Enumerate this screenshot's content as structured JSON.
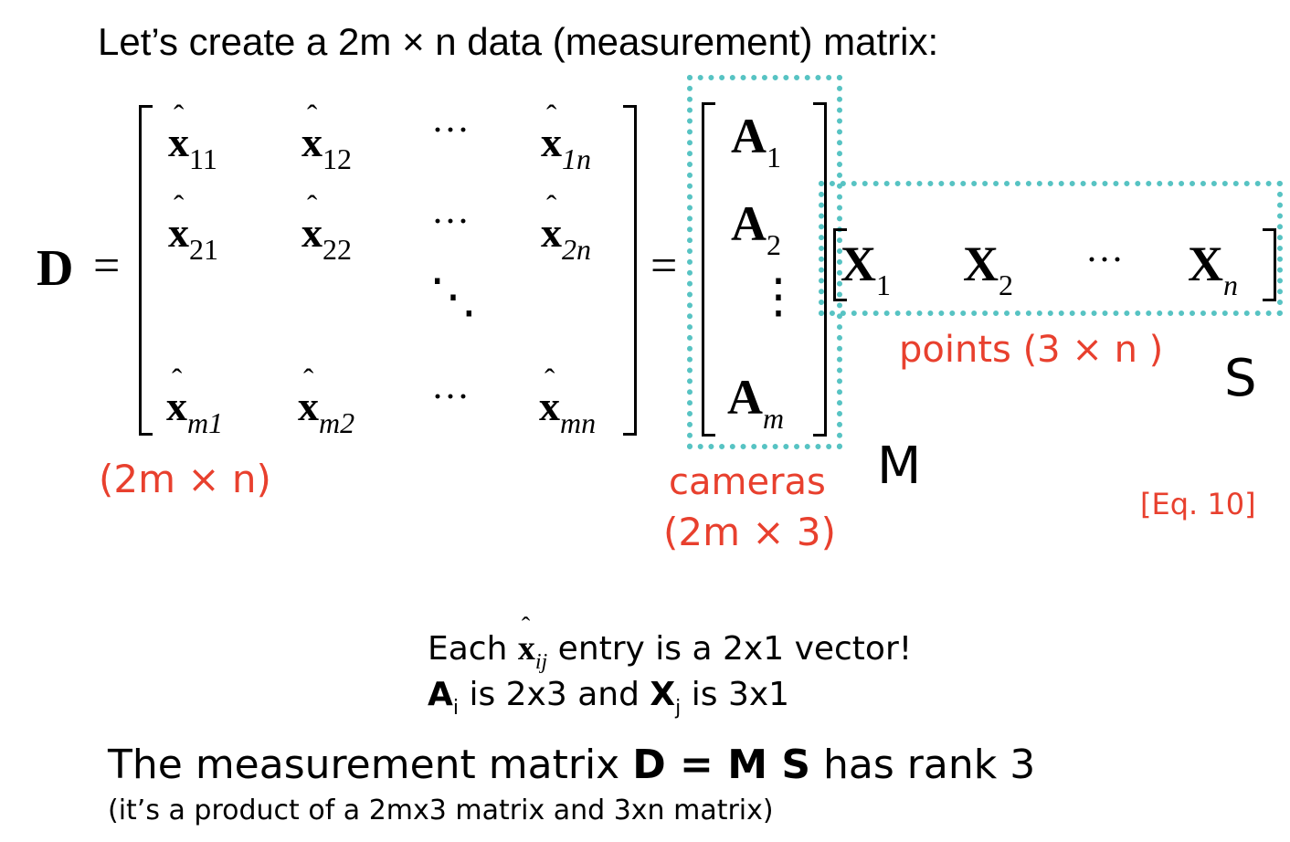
{
  "title": "Let’s create a 2m × n data (measurement) matrix:",
  "equation": {
    "lhs": "D",
    "equals": "=",
    "D_entries": [
      {
        "base": "x",
        "sub": "11"
      },
      {
        "base": "x",
        "sub": "12"
      },
      {
        "base": "x",
        "sub": "1n"
      },
      {
        "base": "x",
        "sub": "21"
      },
      {
        "base": "x",
        "sub": "22"
      },
      {
        "base": "x",
        "sub": "2n"
      },
      {
        "base": "x",
        "sub": "m1"
      },
      {
        "base": "x",
        "sub": "m2"
      },
      {
        "base": "x",
        "sub": "mn"
      }
    ],
    "hdots": "···",
    "vdots": "⋮",
    "ddots": "⋱",
    "hat": "ˆ",
    "A_entries": [
      {
        "base": "A",
        "sub": "1"
      },
      {
        "base": "A",
        "sub": "2"
      },
      {
        "base": "A",
        "sub": "m"
      }
    ],
    "X_entries": [
      {
        "base": "X",
        "sub": "1"
      },
      {
        "base": "X",
        "sub": "2"
      },
      {
        "base": "X",
        "sub": "n"
      }
    ],
    "M_label": "M",
    "S_label": "S"
  },
  "labels": {
    "D_size": "(2m × n)",
    "cameras": "cameras",
    "cameras_size": "(2m × 3)",
    "points": "points (3 × n )",
    "eq_ref": "[Eq. 10]"
  },
  "notes": {
    "line1_pre": "Each",
    "line1_sym": "x",
    "line1_sub": "ij",
    "line1_post": "entry is a 2x1 vector!",
    "line2_A": "A",
    "line2_Asub": "i",
    "line2_mid": "is 2x3 and",
    "line2_X": "X",
    "line2_Xsub": "j",
    "line2_post": "is 3x1"
  },
  "summary": {
    "pre": "The measurement matrix",
    "bold": "D = M S",
    "post": "has rank 3",
    "sub": "(it’s a product of  a 2mx3 matrix and 3xn matrix)"
  },
  "colors": {
    "accent_red": "#e8402e",
    "dotted_teal": "#57c3c3"
  }
}
